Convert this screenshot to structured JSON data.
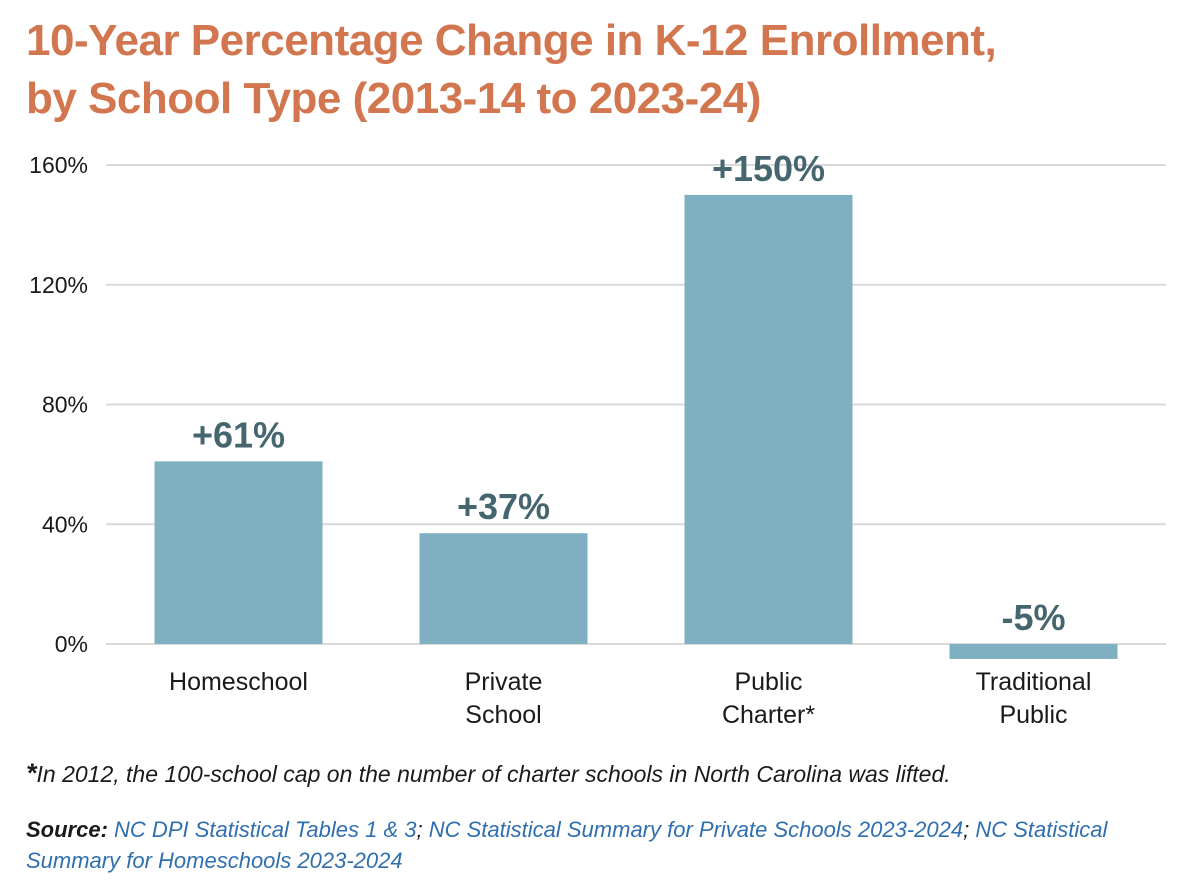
{
  "title": {
    "line1": "10-Year Percentage Change in K-12 Enrollment,",
    "line2": "by School Type (2013-14 to 2023-24)"
  },
  "colors": {
    "title": "#d2764f",
    "bar": "#7fb0c2",
    "data_label": "#46666f",
    "gridline": "#d9d9d9",
    "link": "#2f6fb0"
  },
  "chart_data": {
    "type": "bar",
    "title": "10-Year Percentage Change in K-12 Enrollment, by School Type (2013-14 to 2023-24)",
    "categories": [
      [
        "Homeschool"
      ],
      [
        "Private",
        "School"
      ],
      [
        "Public",
        "Charter*"
      ],
      [
        "Traditional",
        "Public"
      ]
    ],
    "values": [
      61,
      37,
      150,
      -5
    ],
    "data_labels": [
      "+61%",
      "+37%",
      "+150%",
      "-5%"
    ],
    "xlabel": "",
    "ylabel": "",
    "ylim": [
      0,
      160
    ],
    "yticks": [
      0,
      40,
      80,
      120,
      160
    ],
    "ytick_labels": [
      "0%",
      "40%",
      "80%",
      "120%",
      "160%"
    ],
    "grid": true,
    "legend": "none"
  },
  "footnote": {
    "marker": "*",
    "text": "In 2012, the 100-school cap on the number of charter schools in North Carolina was lifted."
  },
  "source": {
    "label": "Source:",
    "link1": "NC DPI Statistical Tables 1 & 3",
    "sep1": ";",
    "link2": "NC Statistical Summary for Private Schools 2023-2024",
    "sep2": ";",
    "link3": "NC Statistical Summary for Homeschools 2023-2024"
  }
}
